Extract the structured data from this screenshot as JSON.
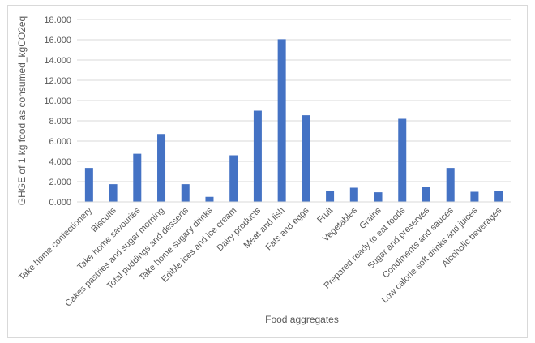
{
  "chart_data": {
    "type": "bar",
    "title": "",
    "xlabel": "Food aggregates",
    "ylabel": "GHGE of 1 kg food as consumed_kgCO2eq",
    "ylim": [
      0,
      18
    ],
    "ytick_step": 2,
    "ytick_labels": [
      "0.000",
      "2.000",
      "4.000",
      "6.000",
      "8.000",
      "10.000",
      "12.000",
      "14.000",
      "16.000",
      "18.000"
    ],
    "grid": true,
    "legend": "none",
    "bar_color": "#4472c4",
    "categories": [
      "Take home confectionery",
      "Biscuits",
      "Take home savouries",
      "Cakes pastries and sugar morning",
      "Total puddings and desserts",
      "Take home sugary drinks",
      "Edible ices and ice cream",
      "Dairy products",
      "Meat and fish",
      "Fats and eggs",
      "Fruit",
      "Vegetables",
      "Grains",
      "Prepared ready to eat foods",
      "Sugar and preserves",
      "Condiments and sauces",
      "Low calorie soft drinks and juices",
      "Alcoholic beverages"
    ],
    "values": [
      3.35,
      1.75,
      4.75,
      6.7,
      1.75,
      0.5,
      4.6,
      9.0,
      16.05,
      8.55,
      1.1,
      1.4,
      0.95,
      8.2,
      1.45,
      3.35,
      1.0,
      1.1
    ]
  }
}
